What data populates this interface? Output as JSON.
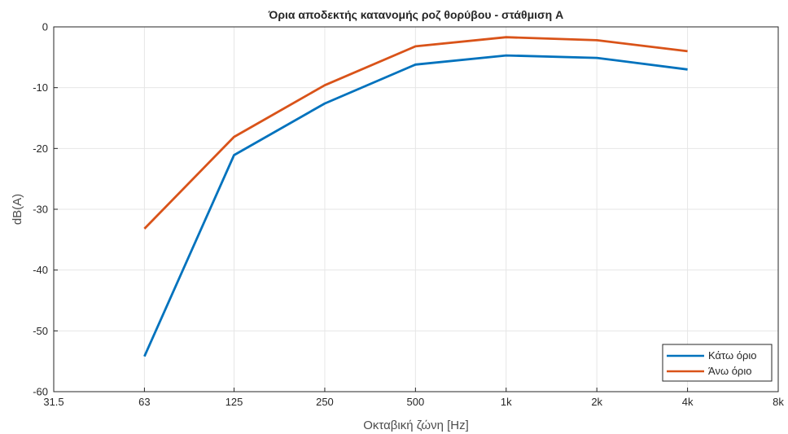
{
  "chart_data": {
    "type": "line",
    "title": "Όρια αποδεκτής κατανομής ροζ θορύβου - στάθμιση A",
    "xlabel": "Οκταβική ζώνη [Hz]",
    "ylabel": "dB(A)",
    "x_scale": "log2",
    "xlim": [
      31.5,
      8000
    ],
    "ylim": [
      -60,
      0
    ],
    "x_ticks": [
      31.5,
      63,
      125,
      250,
      500,
      1000,
      2000,
      4000,
      8000
    ],
    "x_tick_labels": [
      "31.5",
      "63",
      "125",
      "250",
      "500",
      "1k",
      "2k",
      "4k",
      "8k"
    ],
    "y_ticks": [
      0,
      -10,
      -20,
      -30,
      -40,
      -50,
      -60
    ],
    "y_tick_labels": [
      "0",
      "-10",
      "-20",
      "-30",
      "-40",
      "-50",
      "-60"
    ],
    "grid": true,
    "legend_position": "bottom-right",
    "x": [
      63,
      125,
      250,
      500,
      1000,
      2000,
      4000
    ],
    "series": [
      {
        "name": "Κάτω όριο",
        "color": "#0072BD",
        "values": [
          -54.2,
          -21.1,
          -12.6,
          -6.2,
          -4.7,
          -5.1,
          -7.0
        ]
      },
      {
        "name": "Άνω όριο",
        "color": "#D95319",
        "values": [
          -33.2,
          -18.1,
          -9.6,
          -3.2,
          -1.7,
          -2.2,
          -4.0
        ]
      }
    ]
  }
}
